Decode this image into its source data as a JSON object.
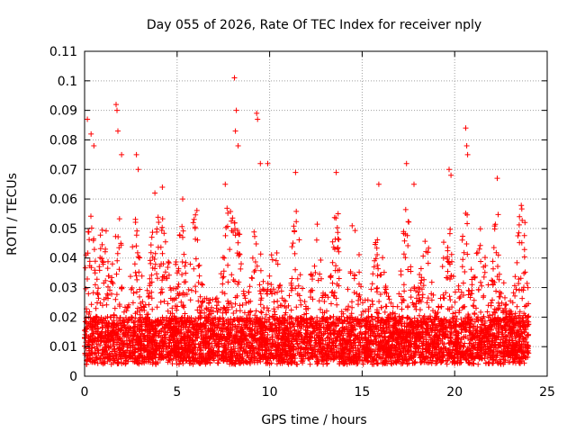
{
  "chart_data": {
    "type": "scatter",
    "title": "Day 055 of 2026, Rate Of TEC Index for receiver nply",
    "xlabel": "GPS time / hours",
    "ylabel": "ROTI / TECUs",
    "xlim": [
      0,
      25
    ],
    "ylim": [
      0,
      0.11
    ],
    "x_ticks": [
      "0",
      "5",
      "10",
      "15",
      "20",
      "25"
    ],
    "y_ticks": [
      "0",
      "0.01",
      "0.02",
      "0.03",
      "0.04",
      "0.05",
      "0.06",
      "0.07",
      "0.08",
      "0.09",
      "0.1",
      "0.11"
    ],
    "grid": true,
    "marker": "+",
    "series_color": "#ff0000",
    "x_data_range": [
      0,
      24
    ],
    "highlight_points": [
      {
        "x": 0.15,
        "y": 0.087
      },
      {
        "x": 0.35,
        "y": 0.082
      },
      {
        "x": 0.5,
        "y": 0.078
      },
      {
        "x": 1.7,
        "y": 0.092
      },
      {
        "x": 1.75,
        "y": 0.09
      },
      {
        "x": 1.8,
        "y": 0.083
      },
      {
        "x": 2.0,
        "y": 0.075
      },
      {
        "x": 2.8,
        "y": 0.075
      },
      {
        "x": 2.9,
        "y": 0.07
      },
      {
        "x": 3.8,
        "y": 0.062
      },
      {
        "x": 4.2,
        "y": 0.064
      },
      {
        "x": 5.3,
        "y": 0.06
      },
      {
        "x": 7.6,
        "y": 0.065
      },
      {
        "x": 8.1,
        "y": 0.101
      },
      {
        "x": 8.2,
        "y": 0.09
      },
      {
        "x": 8.15,
        "y": 0.083
      },
      {
        "x": 8.3,
        "y": 0.078
      },
      {
        "x": 9.3,
        "y": 0.089
      },
      {
        "x": 9.35,
        "y": 0.087
      },
      {
        "x": 9.5,
        "y": 0.072
      },
      {
        "x": 9.9,
        "y": 0.072
      },
      {
        "x": 11.4,
        "y": 0.069
      },
      {
        "x": 13.6,
        "y": 0.069
      },
      {
        "x": 13.7,
        "y": 0.055
      },
      {
        "x": 15.9,
        "y": 0.065
      },
      {
        "x": 17.4,
        "y": 0.072
      },
      {
        "x": 17.8,
        "y": 0.065
      },
      {
        "x": 19.7,
        "y": 0.07
      },
      {
        "x": 19.8,
        "y": 0.068
      },
      {
        "x": 20.6,
        "y": 0.084
      },
      {
        "x": 20.65,
        "y": 0.078
      },
      {
        "x": 20.7,
        "y": 0.075
      },
      {
        "x": 22.3,
        "y": 0.067
      },
      {
        "x": 23.5,
        "y": 0.054
      },
      {
        "x": 23.8,
        "y": 0.052
      }
    ]
  }
}
